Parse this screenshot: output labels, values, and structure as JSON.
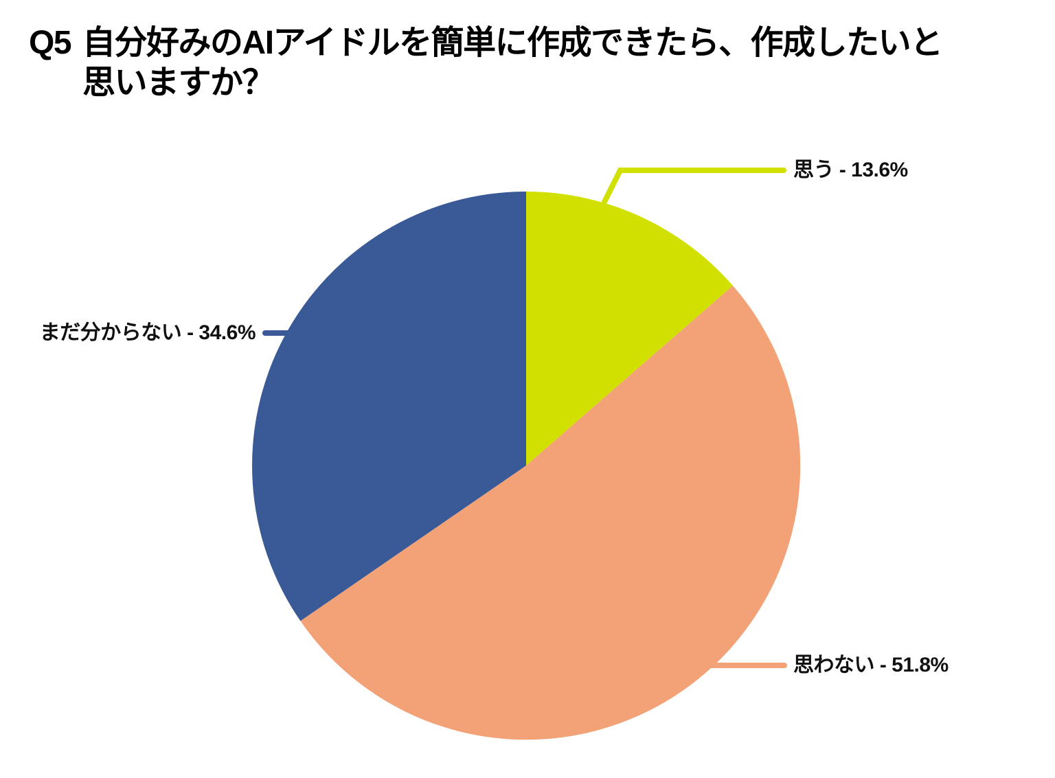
{
  "title": {
    "prefix": "Q5",
    "line1": "自分好みのAIアイドルを簡単に作成できたら、作成したいと",
    "line2": "思いますか？"
  },
  "chart_data": {
    "type": "pie",
    "title": "Q5 自分好みのAIアイドルを簡単に作成できたら、作成したいと思いますか？",
    "unit": "%",
    "start_angle_deg": 0,
    "direction": "clockwise",
    "legend_position": "callout-labels",
    "background": "#ffffff",
    "slices": [
      {
        "key": "think-so",
        "label": "思う",
        "value": 13.6,
        "color": "#d2e000",
        "callout": "思う - 13.6%"
      },
      {
        "key": "dont-think-so",
        "label": "思わない",
        "value": 51.8,
        "color": "#f2a276",
        "callout": "思わない - 51.8%"
      },
      {
        "key": "not-sure-yet",
        "label": "まだ分からない",
        "value": 34.6,
        "color": "#3a5a97",
        "callout": "まだ分からない - 34.6%"
      }
    ]
  }
}
